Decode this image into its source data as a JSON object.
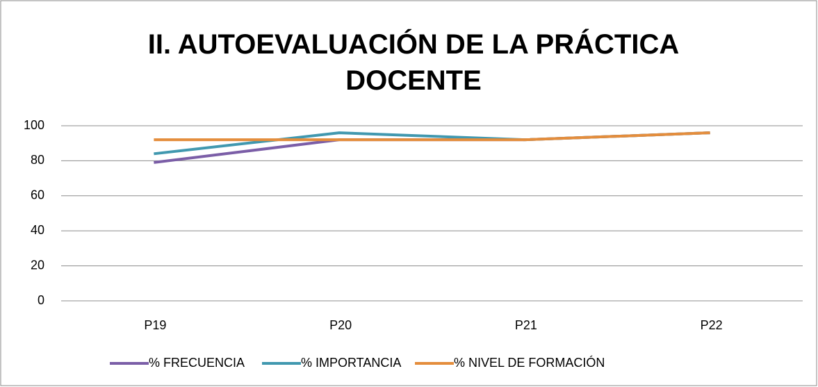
{
  "chart_data": {
    "type": "line",
    "title": "II. AUTOEVALUACIÓN DE LA PRÁCTICA DOCENTE",
    "categories": [
      "P19",
      "P20",
      "P21",
      "P22"
    ],
    "series": [
      {
        "name": "% FRECUENCIA",
        "color": "#7b5ea7",
        "values": [
          79,
          92,
          92,
          96
        ]
      },
      {
        "name": "% IMPORTANCIA",
        "color": "#4198af",
        "values": [
          84,
          96,
          92,
          96
        ]
      },
      {
        "name": "% NIVEL DE FORMACIÓN",
        "color": "#e48d3c",
        "values": [
          92,
          92,
          92,
          96
        ]
      }
    ],
    "ylim": [
      0,
      100
    ],
    "yticks": [
      0,
      20,
      40,
      60,
      80,
      100
    ],
    "grid": true,
    "legend": "bottom"
  }
}
